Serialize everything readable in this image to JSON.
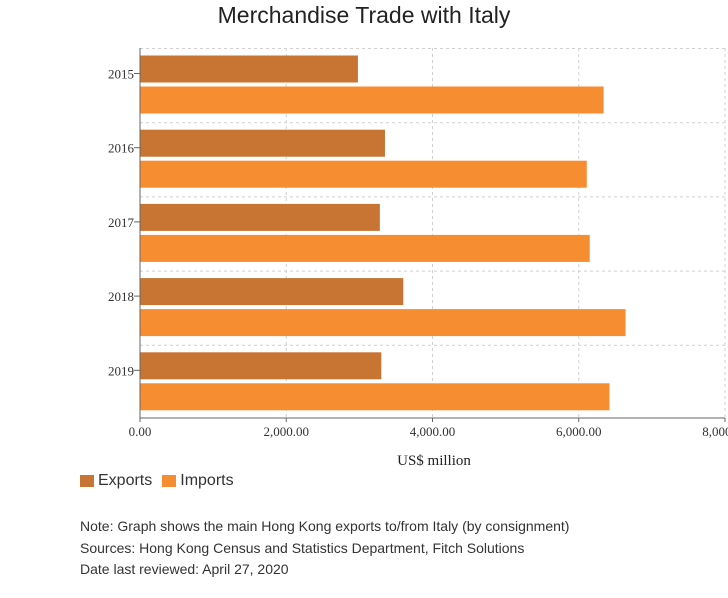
{
  "chart_data": {
    "type": "bar",
    "orientation": "horizontal",
    "title": "Merchandise Trade with Italy",
    "xlabel": "US$ million",
    "ylabel": "",
    "categories": [
      "2015",
      "2016",
      "2017",
      "2018",
      "2019"
    ],
    "series": [
      {
        "name": "Exports",
        "color": "#c87533",
        "values": [
          2980,
          3350,
          3280,
          3600,
          3300
        ]
      },
      {
        "name": "Imports",
        "color": "#f68d30",
        "values": [
          6340,
          6110,
          6150,
          6640,
          6420
        ]
      }
    ],
    "xlim": [
      0,
      8000
    ],
    "xticks": [
      0,
      2000,
      4000,
      6000,
      8000
    ],
    "xtick_labels": [
      "0.00",
      "2,000.00",
      "4,000.00",
      "6,000.00",
      "8,000.00"
    ],
    "grid": true,
    "legend_position": "bottom-left"
  },
  "notes": {
    "note": "Note: Graph shows the main Hong Kong exports to/from Italy (by consignment)",
    "sources": "Sources: Hong Kong Census and Statistics Department, Fitch Solutions",
    "date_reviewed": "Date last reviewed: April 27, 2020"
  }
}
